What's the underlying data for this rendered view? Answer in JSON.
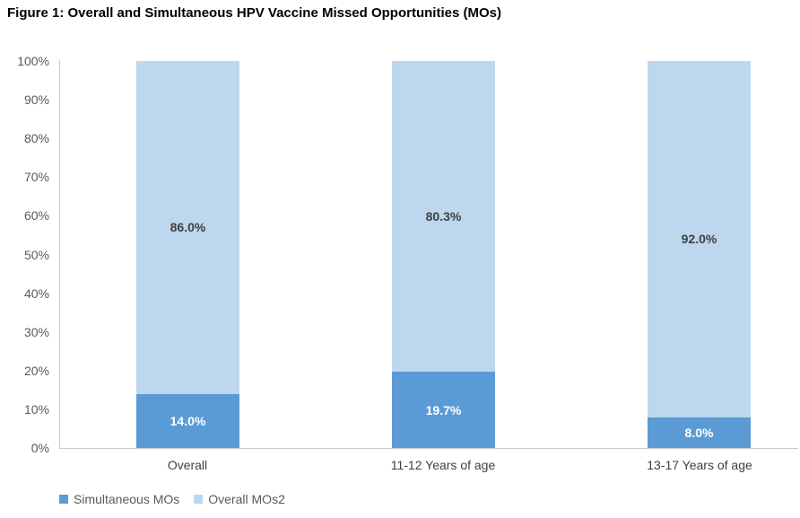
{
  "title": "Figure 1: Overall and Simultaneous HPV Vaccine Missed Opportunities (MOs)",
  "chart_data": {
    "type": "bar",
    "stacked": true,
    "title": "Figure 1: Overall and Simultaneous HPV Vaccine Missed Opportunities (MOs)",
    "categories": [
      "Overall",
      "11-12 Years of age",
      "13-17 Years of age"
    ],
    "series": [
      {
        "name": "Simultaneous MOs",
        "color": "#5B9BD5",
        "label_color": "#FFFFFF",
        "values": [
          14.0,
          19.7,
          8.0
        ],
        "data_labels": [
          "14.0%",
          "19.7%",
          "8.0%"
        ]
      },
      {
        "name": "Overall MOs2",
        "color": "#BDD7EE",
        "label_color": "#404040",
        "values": [
          86.0,
          80.3,
          92.0
        ],
        "data_labels": [
          "86.0%",
          "80.3%",
          "92.0%"
        ]
      }
    ],
    "ylim": [
      0,
      100
    ],
    "y_tick_labels": [
      "0%",
      "10%",
      "20%",
      "30%",
      "40%",
      "50%",
      "60%",
      "70%",
      "80%",
      "90%",
      "100%"
    ],
    "grid": false,
    "legend_position": "bottom-left",
    "legend": [
      {
        "label": "Simultaneous MOs",
        "color": "#5B9BD5"
      },
      {
        "label": "Overall MOs2",
        "color": "#BDD7EE"
      }
    ]
  }
}
